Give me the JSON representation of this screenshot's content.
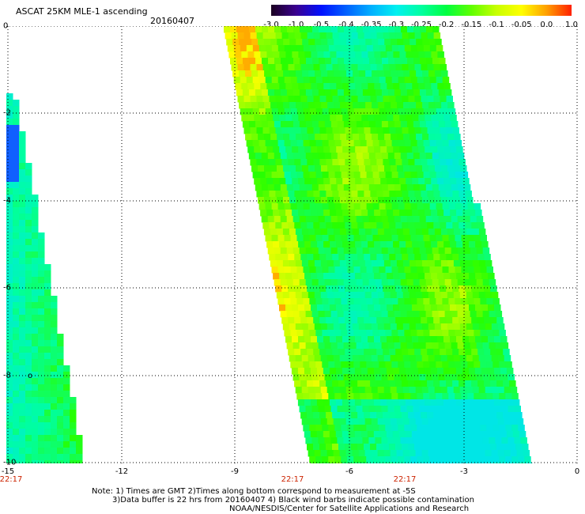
{
  "header": {
    "title": "ASCAT 25KM MLE-1 ascending",
    "date": "20160407"
  },
  "colorbar": {
    "labels": [
      "-3.0",
      "-1.0",
      "-0.5",
      "-0.4",
      "-0.35",
      "-0.3",
      "-0.25",
      "-0.2",
      "-0.15",
      "-0.1",
      "-0.05",
      "0.0",
      "1.0"
    ],
    "colors": [
      "#1a0020",
      "#3a0090",
      "#0010ff",
      "#0060ff",
      "#00b0ff",
      "#00f0f0",
      "#00ffa0",
      "#00ff40",
      "#60ff00",
      "#c8ff00",
      "#ffff00",
      "#ffa000",
      "#ff2000"
    ]
  },
  "axes": {
    "x_ticks": [
      "-15",
      "-12",
      "-9",
      "-6",
      "-3",
      "0"
    ],
    "y_ticks": [
      "0",
      "-2",
      "-4",
      "-6",
      "-8",
      "-10"
    ]
  },
  "times": [
    "22:17",
    "22:17",
    "22:17"
  ],
  "notes": {
    "line1": "Note: 1) Times are GMT 2)Times along bottom correspond to measurement at -5S",
    "line2": "3)Data buffer is 22 hrs from 20160407 4) Black wind barbs indicate possible contamination",
    "line3": "NOAA/NESDIS/Center for Satellite Applications and Research"
  },
  "marker": "o"
}
